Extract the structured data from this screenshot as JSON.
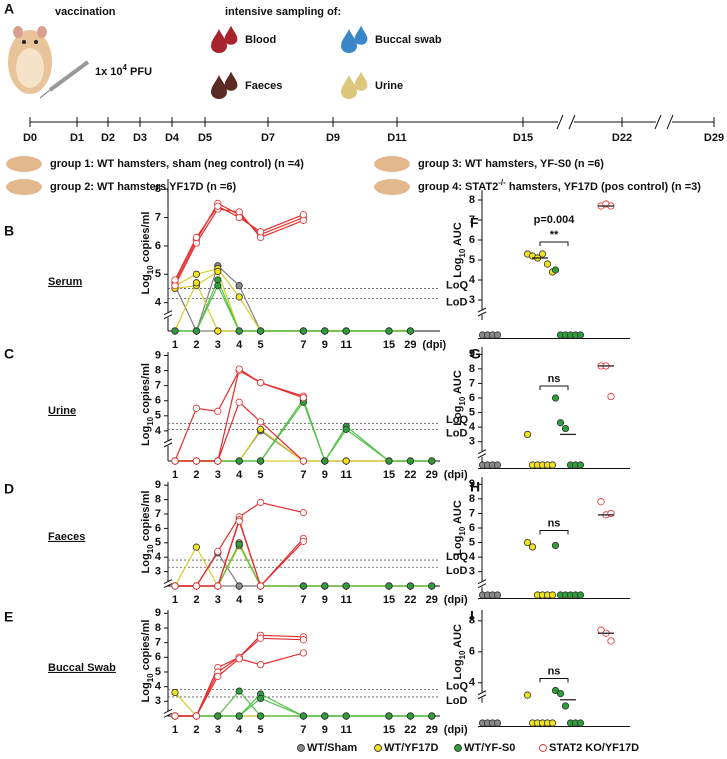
{
  "panel_a": {
    "letter": "A",
    "vaccination": "vaccination",
    "dose": "1x 10",
    "dose_exp": "4",
    "dose_unit": " PFU",
    "sampling_title": "intensive sampling of:",
    "samples": [
      {
        "label": "Blood",
        "color": "#a8232b"
      },
      {
        "label": "Buccal swab",
        "color": "#3a86c8"
      },
      {
        "label": "Faeces",
        "color": "#5b2a22"
      },
      {
        "label": "Urine",
        "color": "#dcc77c"
      }
    ],
    "timeline": [
      "D0",
      "D1",
      "D2",
      "D3",
      "D4",
      "D5",
      "D7",
      "D9",
      "D11",
      "D15",
      "D22",
      "D29"
    ],
    "groups": [
      {
        "parts": [
          "group 1: WT hamsters, sham (neg control) (n =4)"
        ]
      },
      {
        "parts": [
          "group 2: WT hamsters,YF17D (n =6)"
        ]
      },
      {
        "parts": [
          "group 3: WT hamsters, YF-S0 (n =6)"
        ]
      },
      {
        "parts": [
          "group 4: STAT2",
          "-/-",
          " hamsters, YF17D (pos control) (n =3)"
        ]
      }
    ]
  },
  "chart_data": [
    {
      "type": "line",
      "letter": "B",
      "sample": "Serum",
      "ylabel": [
        "Log",
        "10",
        " copies/ml"
      ],
      "xunit": "(dpi)",
      "categories": [
        "1",
        "2",
        "3",
        "4",
        "5",
        "7",
        "9",
        "11",
        "15",
        "29"
      ],
      "ylim": [
        3,
        8.5
      ],
      "yticks": [
        4,
        5,
        6,
        7,
        8
      ],
      "loq": {
        "label": "LoQ",
        "value": 4.5
      },
      "lod": {
        "label": "LoD",
        "value": 4.15
      },
      "series": [
        {
          "color": "#808080",
          "fill": "#8a8a8a",
          "values": [
            3,
            3,
            5.3,
            4.6,
            3,
            3,
            3,
            3,
            3,
            3
          ]
        },
        {
          "color": "#808080",
          "fill": "#8a8a8a",
          "values": [
            4.6,
            3,
            3,
            3,
            3,
            3,
            3,
            3,
            3,
            3
          ]
        },
        {
          "color": "#d9cc2a",
          "fill": "#f0e21b",
          "values": [
            4.6,
            5.0,
            5.2,
            4.2,
            3,
            3,
            3,
            3,
            3,
            3
          ]
        },
        {
          "color": "#d9cc2a",
          "fill": "#f0e21b",
          "values": [
            4.5,
            4.6,
            5.1,
            3,
            3,
            3,
            3,
            3,
            3,
            3
          ]
        },
        {
          "color": "#d9cc2a",
          "fill": "#f0e21b",
          "values": [
            3,
            4.7,
            3,
            3,
            3,
            3,
            3,
            3,
            3,
            3
          ]
        },
        {
          "color": "#55c24a",
          "fill": "#2e9e3a",
          "values": [
            3,
            3,
            4.8,
            3,
            3,
            3,
            3,
            3,
            3,
            3
          ]
        },
        {
          "color": "#55c24a",
          "fill": "#2e9e3a",
          "values": [
            3,
            3,
            4.6,
            3,
            3,
            3,
            3,
            3,
            3,
            3
          ]
        },
        {
          "color": "#e62d2d",
          "fill": "#ffffff",
          "values": [
            4.7,
            6.2,
            7.5,
            7.1,
            6.4,
            7.0,
            null,
            null,
            null,
            null
          ]
        },
        {
          "color": "#e62d2d",
          "fill": "#ffffff",
          "values": [
            4.6,
            6.1,
            7.3,
            7.2,
            6.3,
            6.9,
            null,
            null,
            null,
            null
          ]
        },
        {
          "color": "#e62d2d",
          "fill": "#ffffff",
          "values": [
            4.8,
            6.3,
            7.4,
            7.0,
            6.5,
            7.1,
            null,
            null,
            null,
            null
          ]
        }
      ]
    },
    {
      "type": "line",
      "letter": "C",
      "sample": "Urine",
      "ylabel": [
        "Log",
        "10",
        " copies/ml"
      ],
      "xunit": "(dpi)",
      "categories": [
        "1",
        "2",
        "3",
        "4",
        "5",
        "7",
        "9",
        "11",
        "15",
        "22",
        "29"
      ],
      "ylim": [
        2,
        9.5
      ],
      "yticks": [
        4,
        5,
        6,
        7,
        8,
        9
      ],
      "loq": {
        "label": "LoQ",
        "value": 4.5
      },
      "lod": {
        "label": "LoD",
        "value": 4.1
      },
      "series": [
        {
          "color": "#808080",
          "fill": "#8a8a8a",
          "values": [
            2,
            2,
            2,
            2,
            4.0,
            2,
            2,
            2,
            2,
            2,
            2
          ]
        },
        {
          "color": "#d9cc2a",
          "fill": "#f0e21b",
          "values": [
            2,
            2,
            2,
            2,
            2,
            2,
            2,
            2,
            2,
            2,
            2
          ]
        },
        {
          "color": "#d9cc2a",
          "fill": "#f0e21b",
          "values": [
            2,
            2,
            2,
            2,
            4.1,
            2,
            2,
            2,
            2,
            2,
            2
          ]
        },
        {
          "color": "#55c24a",
          "fill": "#2e9e3a",
          "values": [
            2,
            2,
            2,
            2,
            2,
            6.1,
            2,
            4.3,
            2,
            2,
            2
          ]
        },
        {
          "color": "#55c24a",
          "fill": "#2e9e3a",
          "values": [
            2,
            2,
            2,
            2,
            2,
            5.9,
            2,
            4.1,
            2,
            2,
            2
          ]
        },
        {
          "color": "#e62d2d",
          "fill": "#ffffff",
          "values": [
            2,
            5.5,
            5.3,
            8.0,
            7.2,
            6.3,
            null,
            null,
            null,
            null,
            null
          ]
        },
        {
          "color": "#e62d2d",
          "fill": "#ffffff",
          "values": [
            2,
            2,
            2,
            8.1,
            7.2,
            6.2,
            null,
            null,
            null,
            null,
            null
          ]
        },
        {
          "color": "#e62d2d",
          "fill": "#ffffff",
          "values": [
            2,
            2,
            2,
            5.9,
            4.6,
            2,
            null,
            null,
            null,
            null,
            null
          ]
        }
      ]
    },
    {
      "type": "line",
      "letter": "D",
      "sample": "Faeces",
      "ylabel": [
        "Log",
        "10",
        " copies/ml"
      ],
      "xunit": "(dpi)",
      "categories": [
        "1",
        "2",
        "3",
        "4",
        "5",
        "7",
        "9",
        "11",
        "15",
        "22",
        "29"
      ],
      "ylim": [
        2,
        9.5
      ],
      "yticks": [
        3,
        4,
        5,
        6,
        7,
        8,
        9
      ],
      "loq": {
        "label": "LoQ",
        "value": 3.8
      },
      "lod": {
        "label": "LoD",
        "value": 3.3
      },
      "series": [
        {
          "color": "#808080",
          "fill": "#8a8a8a",
          "values": [
            2,
            2,
            4.3,
            2,
            2,
            2,
            2,
            2,
            2,
            2,
            2
          ]
        },
        {
          "color": "#808080",
          "fill": "#8a8a8a",
          "values": [
            2,
            2,
            2,
            2,
            2,
            2,
            2,
            2,
            2,
            2,
            2
          ]
        },
        {
          "color": "#d9cc2a",
          "fill": "#f0e21b",
          "values": [
            2,
            4.7,
            2,
            5.0,
            2,
            2,
            2,
            2,
            2,
            2,
            2
          ]
        },
        {
          "color": "#d9cc2a",
          "fill": "#f0e21b",
          "values": [
            2,
            2,
            2,
            4.8,
            2,
            2,
            2,
            2,
            2,
            2,
            2
          ]
        },
        {
          "color": "#55c24a",
          "fill": "#2e9e3a",
          "values": [
            2,
            2,
            2,
            4.9,
            2,
            2,
            2,
            2,
            2,
            2,
            2
          ]
        },
        {
          "color": "#e62d2d",
          "fill": "#ffffff",
          "values": [
            2,
            2,
            4.4,
            6.8,
            7.8,
            7.1,
            null,
            null,
            null,
            null,
            null
          ]
        },
        {
          "color": "#e62d2d",
          "fill": "#ffffff",
          "values": [
            2,
            2,
            2,
            6.6,
            2,
            5.3,
            null,
            null,
            null,
            null,
            null
          ]
        },
        {
          "color": "#e62d2d",
          "fill": "#ffffff",
          "values": [
            2,
            2,
            2,
            6.5,
            2,
            5.1,
            null,
            null,
            null,
            null,
            null
          ]
        }
      ]
    },
    {
      "type": "line",
      "letter": "E",
      "sample": "Buccal Swab",
      "ylabel": [
        "Log",
        "10",
        " copies/ml"
      ],
      "xunit": "(dpi)",
      "categories": [
        "1",
        "2",
        "3",
        "4",
        "5",
        "7",
        "9",
        "11",
        "15",
        "22",
        "29"
      ],
      "ylim": [
        2,
        9.5
      ],
      "yticks": [
        3,
        4,
        5,
        6,
        7,
        8,
        9
      ],
      "loq": {
        "label": "LoQ",
        "value": 3.8
      },
      "lod": {
        "label": "LoD",
        "value": 3.3
      },
      "series": [
        {
          "color": "#808080",
          "fill": "#8a8a8a",
          "values": [
            2,
            2,
            2,
            2,
            2,
            2,
            2,
            2,
            2,
            2,
            2
          ]
        },
        {
          "color": "#d9cc2a",
          "fill": "#f0e21b",
          "values": [
            3.6,
            2,
            2,
            2,
            2,
            2,
            2,
            2,
            2,
            2,
            2
          ]
        },
        {
          "color": "#55c24a",
          "fill": "#2e9e3a",
          "values": [
            2,
            2,
            2,
            3.7,
            2,
            2,
            2,
            2,
            2,
            2,
            2
          ]
        },
        {
          "color": "#55c24a",
          "fill": "#2e9e3a",
          "values": [
            2,
            2,
            2,
            2,
            3.5,
            2,
            2,
            2,
            2,
            2,
            2
          ]
        },
        {
          "color": "#55c24a",
          "fill": "#2e9e3a",
          "values": [
            2,
            2,
            2,
            2,
            3.2,
            2,
            2,
            2,
            2,
            2,
            2
          ]
        },
        {
          "color": "#e62d2d",
          "fill": "#ffffff",
          "values": [
            2,
            2,
            5.3,
            6.0,
            7.5,
            7.4,
            null,
            null,
            null,
            null,
            null
          ]
        },
        {
          "color": "#e62d2d",
          "fill": "#ffffff",
          "values": [
            2,
            2,
            5.0,
            6.0,
            7.3,
            7.2,
            null,
            null,
            null,
            null,
            null
          ]
        },
        {
          "color": "#e62d2d",
          "fill": "#ffffff",
          "values": [
            2,
            2,
            4.7,
            5.9,
            5.5,
            6.3,
            null,
            null,
            null,
            null,
            null
          ]
        }
      ]
    },
    {
      "type": "dot",
      "letter": "F",
      "ylabel": [
        "Log",
        "10",
        " AUC"
      ],
      "annotation": "p=0.004",
      "sig": "**",
      "ylim": [
        1.25,
        8.5
      ],
      "yticks": [
        3,
        4,
        5,
        6,
        7,
        8
      ],
      "groups": [
        {
          "color": "#333333",
          "fill": "#8a8a8a",
          "values": [
            1.25,
            1.25,
            1.25,
            1.25
          ],
          "mean": null
        },
        {
          "color": "#333333",
          "fill": "#f0e21b",
          "values": [
            5.3,
            5.2,
            5.1,
            5.3,
            4.8,
            4.4
          ],
          "mean": 5.1
        },
        {
          "color": "#333333",
          "fill": "#2e9e3a",
          "values": [
            4.5,
            1.25,
            1.25,
            1.25,
            1.25,
            1.25
          ],
          "mean": null
        },
        {
          "color": "#e62d2d",
          "fill": "#ffffff",
          "values": [
            7.7,
            7.8,
            7.7
          ],
          "mean": 7.7
        }
      ]
    },
    {
      "type": "dot",
      "letter": "G",
      "ylabel": [
        "Log",
        "10",
        " AUC"
      ],
      "sig": "ns",
      "ylim": [
        1.4,
        9.5
      ],
      "yticks": [
        3,
        4,
        5,
        6,
        7,
        8,
        9
      ],
      "groups": [
        {
          "color": "#333333",
          "fill": "#8a8a8a",
          "values": [
            1.4,
            1.4,
            1.4,
            1.4
          ],
          "mean": null
        },
        {
          "color": "#333333",
          "fill": "#f0e21b",
          "values": [
            3.5,
            1.4,
            1.4,
            1.4,
            1.4,
            1.4
          ],
          "mean": null
        },
        {
          "color": "#333333",
          "fill": "#2e9e3a",
          "values": [
            6.0,
            4.3,
            3.9,
            1.4,
            1.4,
            1.4
          ],
          "mean": 3.5
        },
        {
          "color": "#e62d2d",
          "fill": "#ffffff",
          "values": [
            8.2,
            8.2,
            6.1
          ],
          "mean": 8.2
        }
      ]
    },
    {
      "type": "dot",
      "letter": "H",
      "ylabel": [
        "Log",
        "10",
        " AUC"
      ],
      "sig": "ns",
      "ylim": [
        1.4,
        9.5
      ],
      "yticks": [
        3,
        4,
        5,
        6,
        7,
        8,
        9
      ],
      "groups": [
        {
          "color": "#333333",
          "fill": "#8a8a8a",
          "values": [
            1.4,
            1.4,
            1.4,
            1.4
          ],
          "mean": null
        },
        {
          "color": "#333333",
          "fill": "#f0e21b",
          "values": [
            5.0,
            4.7,
            1.4,
            1.4,
            1.4,
            1.4
          ],
          "mean": null
        },
        {
          "color": "#333333",
          "fill": "#2e9e3a",
          "values": [
            4.8,
            1.4,
            1.4,
            1.4,
            1.4,
            1.4
          ],
          "mean": null
        },
        {
          "color": "#e62d2d",
          "fill": "#ffffff",
          "values": [
            7.8,
            6.9,
            7.0
          ],
          "mean": 6.9
        }
      ]
    },
    {
      "type": "dot",
      "letter": "I",
      "ylabel": [
        "Log",
        "10",
        " AUC"
      ],
      "sig": "ns",
      "ylim": [
        1.4,
        8.7
      ],
      "yticks": [
        4,
        6,
        8
      ],
      "groups": [
        {
          "color": "#333333",
          "fill": "#8a8a8a",
          "values": [
            1.4,
            1.4,
            1.4,
            1.4
          ],
          "mean": null
        },
        {
          "color": "#333333",
          "fill": "#f0e21b",
          "values": [
            3.2,
            1.4,
            1.4,
            1.4,
            1.4,
            1.4
          ],
          "mean": null
        },
        {
          "color": "#333333",
          "fill": "#2e9e3a",
          "values": [
            3.5,
            3.3,
            2.5,
            1.4,
            1.4,
            1.4
          ],
          "mean": 2.9
        },
        {
          "color": "#e62d2d",
          "fill": "#ffffff",
          "values": [
            7.4,
            7.2,
            6.7
          ],
          "mean": 7.2
        }
      ]
    }
  ],
  "legend": [
    {
      "name": "WT/Sham",
      "color": "#333333",
      "fill": "#8a8a8a"
    },
    {
      "name": "WT/YF17D",
      "color": "#333333",
      "fill": "#f0e21b"
    },
    {
      "name": "WT/YF-S0",
      "color": "#333333",
      "fill": "#2e9e3a"
    },
    {
      "name": "STAT2 KO/YF17D",
      "color": "#e62d2d",
      "fill": "#ffffff"
    }
  ]
}
